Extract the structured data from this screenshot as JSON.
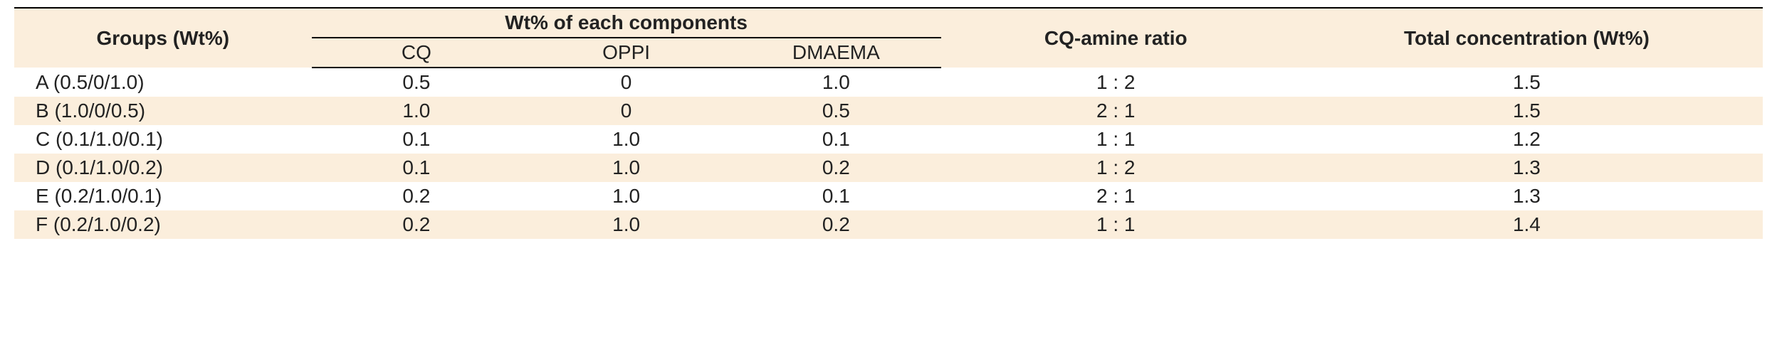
{
  "table": {
    "type": "table",
    "background_color_header": "#fbeedc",
    "background_color_row_alt": "#fbeedc",
    "background_color_row": "#ffffff",
    "border_color": "#000000",
    "font_family": "Arial",
    "header_fontsize": 28,
    "cell_fontsize": 28,
    "columns": {
      "groups_header": "Groups (Wt%)",
      "components_header": "Wt% of each components",
      "sub": {
        "cq": "CQ",
        "oppi": "OPPI",
        "dmaema": "DMAEMA"
      },
      "ratio_header": "CQ-amine ratio",
      "total_header": "Total concentration (Wt%)"
    },
    "column_widths_pct": [
      17,
      12,
      12,
      12,
      20,
      27
    ],
    "rows": [
      {
        "group": "A (0.5/0/1.0)",
        "cq": "0.5",
        "oppi": "0",
        "dmaema": "1.0",
        "ratio": "1 : 2",
        "total": "1.5"
      },
      {
        "group": "B (1.0/0/0.5)",
        "cq": "1.0",
        "oppi": "0",
        "dmaema": "0.5",
        "ratio": "2 : 1",
        "total": "1.5"
      },
      {
        "group": "C (0.1/1.0/0.1)",
        "cq": "0.1",
        "oppi": "1.0",
        "dmaema": "0.1",
        "ratio": "1 : 1",
        "total": "1.2"
      },
      {
        "group": "D (0.1/1.0/0.2)",
        "cq": "0.1",
        "oppi": "1.0",
        "dmaema": "0.2",
        "ratio": "1 : 2",
        "total": "1.3"
      },
      {
        "group": "E (0.2/1.0/0.1)",
        "cq": "0.2",
        "oppi": "1.0",
        "dmaema": "0.1",
        "ratio": "2 : 1",
        "total": "1.3"
      },
      {
        "group": "F (0.2/1.0/0.2)",
        "cq": "0.2",
        "oppi": "1.0",
        "dmaema": "0.2",
        "ratio": "1 : 1",
        "total": "1.4"
      }
    ]
  }
}
